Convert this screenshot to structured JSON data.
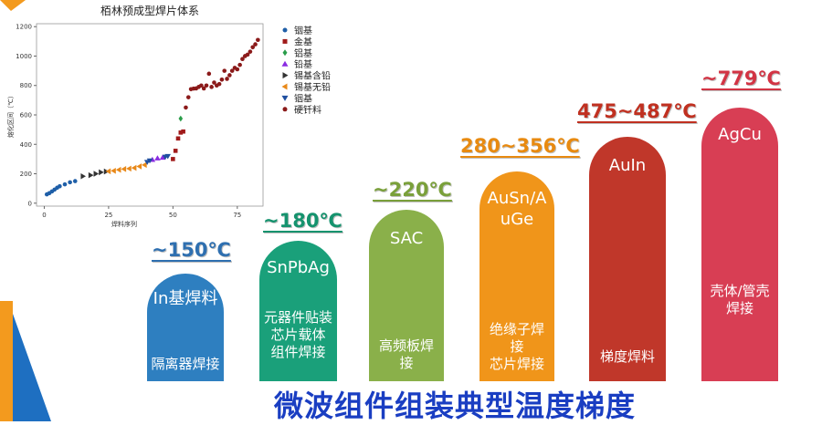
{
  "chart_data": {
    "type": "scatter",
    "title": "栢林预成型焊片体系",
    "xlabel": "焊料序列",
    "ylabel": "熔化区间（℃）",
    "xlim": [
      -3,
      85
    ],
    "ylim": [
      -20,
      1220
    ],
    "xticks": [
      0,
      25,
      50,
      75
    ],
    "yticks": [
      0,
      200,
      400,
      600,
      800,
      1000,
      1200
    ],
    "grid": false,
    "legend_position": "right",
    "series": [
      {
        "name": "铟基",
        "color": "#1f5fa8",
        "marker": "circle",
        "x": [
          1,
          2,
          3,
          4,
          5,
          6,
          8,
          10,
          12
        ],
        "y": [
          60,
          68,
          80,
          92,
          105,
          115,
          128,
          142,
          150
        ]
      },
      {
        "name": "金基",
        "color": "#a01a1a",
        "marker": "square",
        "x": [
          50,
          51,
          52,
          53,
          54
        ],
        "y": [
          300,
          356,
          440,
          480,
          487
        ]
      },
      {
        "name": "铝基",
        "color": "#2a9d4a",
        "marker": "diamond",
        "x": [
          53
        ],
        "y": [
          575
        ]
      },
      {
        "name": "铅基",
        "color": "#8a2be2",
        "marker": "triangle-up",
        "x": [
          42,
          44,
          46
        ],
        "y": [
          295,
          305,
          310
        ]
      },
      {
        "name": "锡基含铅",
        "color": "#333333",
        "marker": "triangle-right",
        "x": [
          15,
          18,
          20,
          22,
          24
        ],
        "y": [
          183,
          190,
          200,
          210,
          215
        ]
      },
      {
        "name": "锡基无铅",
        "color": "#e8891a",
        "marker": "triangle-left",
        "x": [
          25,
          27,
          29,
          31,
          33,
          35,
          37,
          39
        ],
        "y": [
          217,
          220,
          227,
          232,
          235,
          240,
          250,
          260
        ]
      },
      {
        "name": "铟基",
        "color": "#1f4fa0",
        "marker": "triangle-down",
        "x": [
          40,
          41,
          47,
          48
        ],
        "y": [
          280,
          290,
          315,
          320
        ]
      },
      {
        "name": "硬钎料",
        "color": "#8b1a1a",
        "marker": "circle",
        "x": [
          55,
          56,
          57,
          58,
          59,
          60,
          61,
          62,
          63,
          64,
          65,
          66,
          67,
          68,
          69,
          70,
          71,
          72,
          73,
          74,
          75,
          76,
          77,
          78,
          79,
          80,
          81,
          82,
          83
        ],
        "y": [
          650,
          720,
          775,
          779,
          780,
          790,
          800,
          780,
          800,
          880,
          790,
          820,
          800,
          810,
          840,
          900,
          845,
          870,
          900,
          920,
          910,
          940,
          980,
          1000,
          1010,
          1030,
          1060,
          1080,
          1110
        ]
      }
    ]
  },
  "pills": [
    {
      "temp": "~150℃",
      "name": "In基焊料",
      "desc": "隔离器焊接",
      "color": "#2e7fc0",
      "temp_color": "#2e6fb0"
    },
    {
      "temp": "~180℃",
      "name": "SnPbAg",
      "desc": "元器件贴装\n芯片载体\n组件焊接",
      "color": "#1aa07a",
      "temp_color": "#15936e"
    },
    {
      "temp": "~220℃",
      "name": "SAC",
      "desc": "高频板焊接",
      "color": "#8ab04a",
      "temp_color": "#7aa03a"
    },
    {
      "temp": "280~356℃",
      "name": "AuSn/AuGe",
      "desc": "绝缘子焊接\n芯片焊接",
      "color": "#f0951a",
      "temp_color": "#e88a10"
    },
    {
      "temp": "475~487℃",
      "name": "AuIn",
      "desc": "梯度焊料",
      "color": "#c0372a",
      "temp_color": "#c03020"
    },
    {
      "temp": "~779℃",
      "name": "AgCu",
      "desc": "壳体/管壳焊接",
      "color": "#d83e54",
      "temp_color": "#d23444"
    }
  ],
  "main_title": "微波组件组装典型温度梯度",
  "colors": {
    "title_blue": "#1a3ec2",
    "deco_orange": "#f39a1e",
    "deco_blue": "#1e6fc1"
  }
}
